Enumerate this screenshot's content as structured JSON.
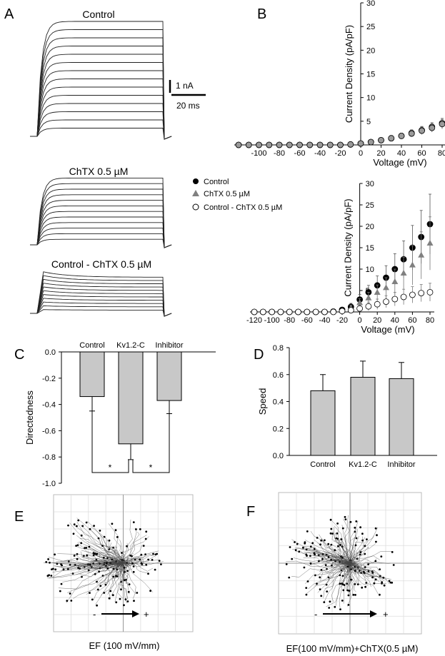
{
  "figure": {
    "panel_labels": {
      "A": "A",
      "B": "B",
      "C": "C",
      "D": "D",
      "E": "E",
      "F": "F"
    },
    "panel_a": {
      "titles": [
        "Control",
        "ChTX 0.5 µM",
        "Control - ChTX 0.5 µM"
      ],
      "scale_current": "1 nA",
      "scale_time": "20 ms"
    },
    "legend_b": [
      {
        "label": "Control",
        "marker": "filled-circle",
        "color": "#000000"
      },
      {
        "label": "ChTX 0.5 µM",
        "marker": "gray-triangle",
        "color": "#808080"
      },
      {
        "label": "Control - ChTX 0.5 µM",
        "marker": "open-circle",
        "color": "#ffffff"
      }
    ],
    "panel_e_caption": "EF (100 mV/mm)",
    "panel_f_caption": "EF(100 mV/mm)+ChTX(0.5 µM)",
    "field_minus": "-",
    "field_plus": "+",
    "significance": [
      "*",
      "*"
    ]
  },
  "chart_data": [
    {
      "id": "B-top",
      "type": "scatter",
      "xlabel": "Voltage (mV)",
      "ylabel": "Current Density (pA/pF)",
      "xlim": [
        -120,
        80
      ],
      "ylim": [
        0,
        30
      ],
      "xticks": [
        "-100",
        "-80",
        "-60",
        "-40",
        "-20",
        "0",
        "20",
        "40",
        "60",
        "80"
      ],
      "yticks": [
        "5",
        "10",
        "15",
        "20",
        "25",
        "30"
      ],
      "x": [
        -120,
        -110,
        -100,
        -90,
        -80,
        -70,
        -60,
        -50,
        -40,
        -30,
        -20,
        -10,
        0,
        10,
        20,
        30,
        40,
        50,
        60,
        70,
        80
      ],
      "series": [
        {
          "name": "Control",
          "values": [
            0,
            0,
            0,
            0,
            0,
            0,
            0,
            0,
            0,
            0,
            0,
            0.1,
            0.3,
            0.6,
            1.0,
            1.4,
            1.9,
            2.5,
            3.1,
            3.8,
            4.6
          ],
          "errors": [
            0.2,
            0.2,
            0.2,
            0.2,
            0.2,
            0.2,
            0.2,
            0.2,
            0.2,
            0.2,
            0.2,
            0.3,
            0.3,
            0.4,
            0.5,
            0.6,
            0.6,
            0.7,
            0.8,
            0.9,
            1.0
          ]
        },
        {
          "name": "ChTX 0.5 µM",
          "values": [
            0,
            0,
            0,
            0,
            0,
            0,
            0,
            0,
            0,
            0,
            0,
            0.1,
            0.3,
            0.6,
            1.0,
            1.4,
            1.9,
            2.4,
            3.0,
            3.6,
            4.4
          ],
          "errors": [
            0.2,
            0.2,
            0.2,
            0.2,
            0.2,
            0.2,
            0.2,
            0.2,
            0.2,
            0.2,
            0.2,
            0.3,
            0.3,
            0.4,
            0.5,
            0.6,
            0.6,
            0.7,
            0.8,
            0.9,
            1.0
          ]
        }
      ]
    },
    {
      "id": "B-bottom",
      "type": "scatter",
      "xlabel": "Voltage (mV)",
      "ylabel": "Current Density (pA/pF)",
      "xlim": [
        -120,
        80
      ],
      "ylim": [
        0,
        30
      ],
      "xticks": [
        "-120",
        "-100",
        "-80",
        "-60",
        "-40",
        "-20",
        "0",
        "20",
        "40",
        "60",
        "80"
      ],
      "yticks": [
        "5",
        "10",
        "15",
        "20",
        "25",
        "30"
      ],
      "x": [
        -120,
        -110,
        -100,
        -90,
        -80,
        -70,
        -60,
        -50,
        -40,
        -30,
        -20,
        -10,
        0,
        10,
        20,
        30,
        40,
        50,
        60,
        70,
        80
      ],
      "series": [
        {
          "name": "Control",
          "values": [
            0,
            0,
            0,
            0,
            0,
            0,
            0,
            0,
            0,
            0.1,
            0.5,
            1.2,
            2.9,
            4.6,
            6.2,
            8.0,
            10.0,
            12.3,
            15.0,
            17.5,
            20.5
          ],
          "errors": [
            0.2,
            0.2,
            0.2,
            0.2,
            0.2,
            0.2,
            0.2,
            0.2,
            0.3,
            0.3,
            0.5,
            0.8,
            1.2,
            1.6,
            2.2,
            2.8,
            3.6,
            4.3,
            5.2,
            6.2,
            7.0
          ]
        },
        {
          "name": "ChTX 0.5 µM",
          "values": [
            0,
            0,
            0,
            0,
            0,
            0,
            0,
            0,
            0,
            0.1,
            0.3,
            0.9,
            2.1,
            3.2,
            4.5,
            5.6,
            7.0,
            9.0,
            10.9,
            13.2,
            16.0
          ],
          "errors": [
            0.2,
            0.2,
            0.2,
            0.2,
            0.2,
            0.2,
            0.2,
            0.2,
            0.3,
            0.3,
            0.4,
            0.7,
            1.0,
            1.4,
            1.8,
            2.4,
            3.0,
            3.8,
            4.6,
            5.5,
            6.2
          ]
        },
        {
          "name": "Control - ChTX 0.5 µM",
          "values": [
            0,
            0,
            0,
            0,
            0,
            0,
            0,
            0,
            0,
            0,
            0.2,
            0.4,
            0.8,
            1.3,
            1.8,
            2.4,
            3.0,
            3.5,
            4.0,
            4.4,
            4.6
          ],
          "errors": [
            0.2,
            0.2,
            0.2,
            0.2,
            0.2,
            0.2,
            0.2,
            0.2,
            0.2,
            0.3,
            0.4,
            0.5,
            0.8,
            1.0,
            1.2,
            1.4,
            1.6,
            1.8,
            1.9,
            2.0,
            2.1
          ]
        }
      ]
    },
    {
      "id": "C",
      "type": "bar",
      "ylabel": "Directedness",
      "ylim": [
        -1.0,
        0.0
      ],
      "yticks": [
        "0.0",
        "-0.2",
        "-0.4",
        "-0.6",
        "-0.8",
        "-1.0"
      ],
      "categories": [
        "Control",
        "Kv1.2-C",
        "Inhibitor"
      ],
      "values": [
        -0.34,
        -0.7,
        -0.37
      ],
      "errors": [
        0.11,
        0.12,
        0.1
      ]
    },
    {
      "id": "D",
      "type": "bar",
      "ylabel": "Speed",
      "ylim": [
        0.0,
        0.8
      ],
      "yticks": [
        "0.0",
        "0.2",
        "0.4",
        "0.6",
        "0.8"
      ],
      "categories": [
        "Control",
        "Kv1.2-C",
        "Inhibitor"
      ],
      "values": [
        0.48,
        0.58,
        0.57
      ],
      "errors": [
        0.12,
        0.12,
        0.12
      ]
    }
  ]
}
